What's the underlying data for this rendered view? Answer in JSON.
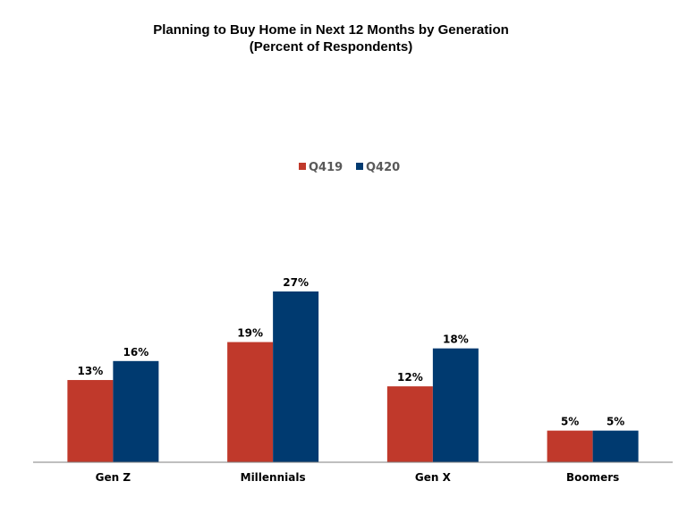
{
  "chart_data": {
    "type": "bar",
    "title": "Planning to Buy Home in Next 12 Months by Generation",
    "subtitle": "(Percent of Respondents)",
    "categories": [
      "Gen Z",
      "Millennials",
      "Gen X",
      "Boomers"
    ],
    "series": [
      {
        "name": "Q419",
        "values": [
          13,
          19,
          12,
          5
        ],
        "labels": [
          "13%",
          "19%",
          "12%",
          "5%"
        ],
        "color": "#c0392b"
      },
      {
        "name": "Q420",
        "values": [
          16,
          27,
          18,
          5
        ],
        "labels": [
          "16%",
          "27%",
          "18%",
          "5%"
        ],
        "color": "#003a70"
      }
    ],
    "xlabel": "",
    "ylabel": "",
    "ylim": [
      0,
      27
    ],
    "grid": false,
    "legend": "top-center"
  }
}
